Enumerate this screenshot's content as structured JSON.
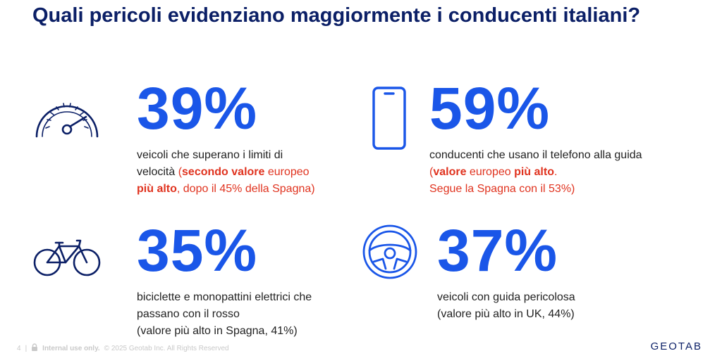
{
  "title": "Quali pericoli evidenziano maggiormente i conducenti italiani?",
  "stats": [
    {
      "icon": "speedometer-icon",
      "value": "39%",
      "line1": "veicoli che superano i limiti di",
      "line2_a": "velocità ",
      "line2_b": "(",
      "line2_c": "secondo valore",
      "line2_d": " europeo",
      "line3_a": "più alto",
      "line3_b": ", dopo il 45% della Spagna)"
    },
    {
      "icon": "smartphone-icon",
      "value": "59%",
      "line1": "conducenti che usano il telefono alla guida",
      "line2_a": "(",
      "line2_b": "valore",
      "line2_c": " europeo ",
      "line2_d": "più alto",
      "line2_e": ".",
      "line3": "Segue la Spagna con il 53%)"
    },
    {
      "icon": "bicycle-icon",
      "value": "35%",
      "line1": "biciclette e monopattini elettrici che",
      "line2": "passano con il rosso",
      "line3": "(valore più alto in Spagna, 41%)"
    },
    {
      "icon": "steering-wheel-icon",
      "value": "37%",
      "line1": "veicoli con guida pericolosa",
      "line2": "(valore più alto in UK, 44%)"
    }
  ],
  "footer": {
    "page": "4",
    "separator": "|",
    "internal": "Internal use only.",
    "copyright": "© 2025 Geotab Inc. All Rights Reserved"
  },
  "logo": "GEOTAB",
  "colors": {
    "title": "#0b1f66",
    "accent": "#1a56e8",
    "highlight": "#e0331f"
  }
}
